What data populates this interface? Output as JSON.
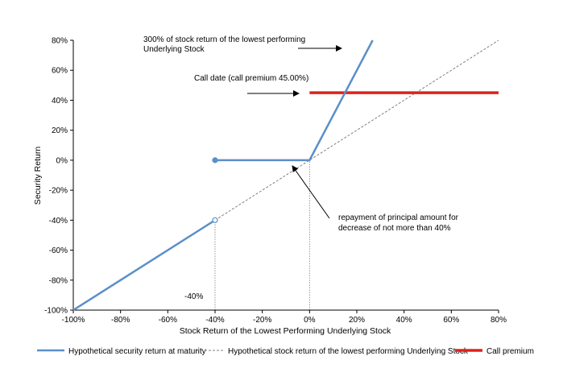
{
  "chart_data": {
    "type": "line",
    "xlabel": "Stock Return of the Lowest Performing Underlying Stock",
    "ylabel": "Security Return",
    "xlim": [
      -100,
      80
    ],
    "ylim": [
      -100,
      80
    ],
    "x_ticks": [
      "-100%",
      "-80%",
      "-60%",
      "-40%",
      "-20%",
      "0%",
      "20%",
      "40%",
      "60%",
      "80%"
    ],
    "y_ticks": [
      "-100%",
      "-80%",
      "-60%",
      "-40%",
      "-20%",
      "0%",
      "20%",
      "40%",
      "60%",
      "80%"
    ],
    "grid": false,
    "series": [
      {
        "name": "Hypothetical security return at maturity",
        "color": "#5b8fc9",
        "style": "solid",
        "segments": [
          [
            [
              -100,
              -100
            ],
            [
              -40,
              -40
            ]
          ],
          [
            [
              -40,
              0
            ],
            [
              0,
              0
            ],
            [
              26.7,
              80
            ]
          ]
        ],
        "markers": [
          {
            "x": -40,
            "y": 0,
            "fill": "filled"
          },
          {
            "x": -40,
            "y": -40,
            "fill": "open"
          }
        ]
      },
      {
        "name": "Hypothetical stock return of the lowest performing Underlying Stock",
        "color": "#808080",
        "style": "dashed",
        "points": [
          [
            -40,
            -40
          ],
          [
            80,
            80
          ]
        ]
      },
      {
        "name": "Call premium",
        "color": "#e0201b",
        "style": "solid",
        "points": [
          [
            0,
            45
          ],
          [
            80,
            45
          ]
        ]
      }
    ],
    "reference_lines": [
      {
        "x": -40,
        "y_from": -100,
        "y_to": -40
      },
      {
        "x": 0,
        "y_from": -100,
        "y_to": 0
      }
    ],
    "annotations": [
      {
        "text_lines": [
          "300% of stock return of the lowest performing",
          "Underlying Stock"
        ]
      },
      {
        "text_lines": [
          "Call date (call premium 45.00%)"
        ]
      },
      {
        "text_lines": [
          "repayment of principal amount for",
          "decrease of not more than 40%"
        ]
      },
      {
        "text_lines": [
          "-40%"
        ]
      }
    ],
    "legend": {
      "placement": "bottom",
      "entries": [
        "Hypothetical security return at maturity",
        "Hypothetical stock return of the lowest performing Underlying Stock",
        "Call premium"
      ]
    }
  }
}
